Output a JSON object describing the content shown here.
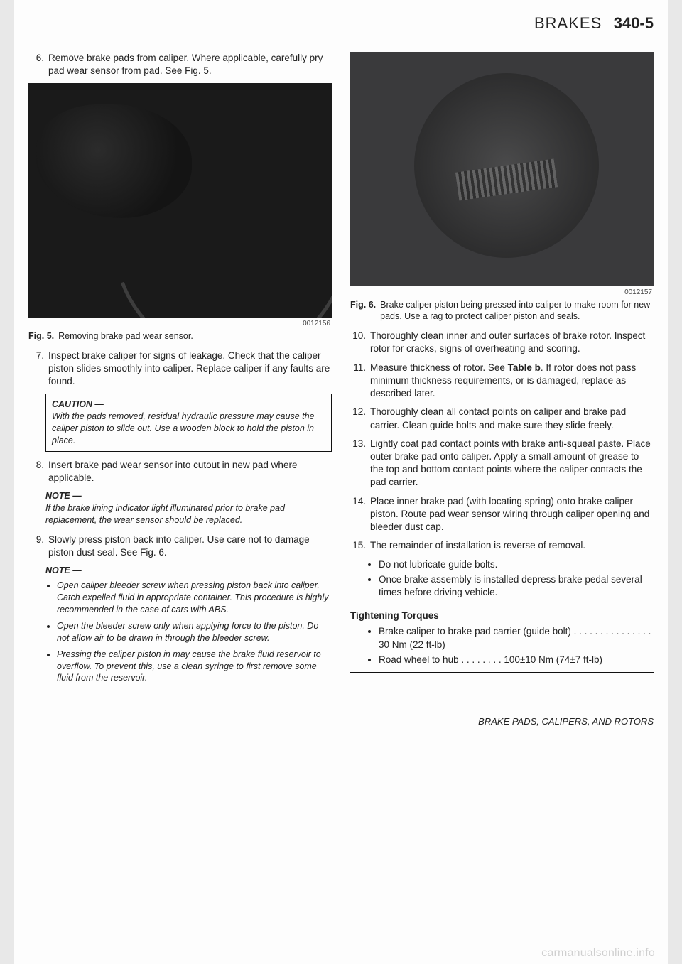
{
  "header": {
    "title": "BRAKES",
    "pagenum": "340-5"
  },
  "left": {
    "step6": {
      "num": "6.",
      "text": "Remove brake pads from caliper. Where applicable, carefully pry pad wear sensor from pad. See Fig. 5."
    },
    "fig5": {
      "imgnum": "0012156",
      "label": "Fig. 5.",
      "caption": "Removing brake pad wear sensor."
    },
    "step7": {
      "num": "7.",
      "text": "Inspect brake caliper for signs of leakage. Check that the caliper piston slides smoothly into caliper. Replace caliper if any faults are found."
    },
    "caution": {
      "label": "CAUTION —",
      "body": "With the pads removed, residual hydraulic pressure may cause the caliper piston to slide out. Use a wooden block to hold the piston in place."
    },
    "step8": {
      "num": "8.",
      "text": "Insert brake pad wear sensor into cutout in new pad where applicable."
    },
    "note1": {
      "label": "NOTE —",
      "body": "If the brake lining indicator light illuminated prior to brake pad replacement, the wear sensor should be replaced."
    },
    "step9": {
      "num": "9.",
      "text": "Slowly press piston back into caliper. Use care not to damage piston dust seal. See Fig. 6."
    },
    "note2": {
      "label": "NOTE —",
      "items": [
        "Open caliper bleeder screw when pressing piston back into caliper. Catch expelled fluid in appropriate container. This procedure is highly recommended in the case of cars with ABS.",
        "Open the bleeder screw only when applying force to the piston. Do not allow air to be drawn in through the bleeder screw.",
        "Pressing the caliper piston in may cause the brake fluid reservoir to overflow. To prevent this, use a clean syringe to first remove some fluid from the reservoir."
      ]
    }
  },
  "right": {
    "fig6": {
      "imgnum": "0012157",
      "label": "Fig. 6.",
      "caption": "Brake caliper piston being pressed into caliper to make room for new pads. Use a rag to protect caliper piston and seals."
    },
    "step10": {
      "num": "10.",
      "text": "Thoroughly clean inner and outer surfaces of brake rotor. Inspect rotor for cracks, signs of overheating and scoring."
    },
    "step11": {
      "num": "11.",
      "text_pre": "Measure thickness of rotor. See ",
      "bold": "Table b",
      "text_post": ". If rotor does not pass minimum thickness requirements, or is damaged, replace as described later."
    },
    "step12": {
      "num": "12.",
      "text": "Thoroughly clean all contact points on caliper and brake pad carrier. Clean guide bolts and make sure they slide freely."
    },
    "step13": {
      "num": "13.",
      "text": "Lightly coat pad contact points with brake anti-squeal paste. Place outer brake pad onto caliper. Apply a small amount of grease to the top and bottom contact points where the caliper contacts the pad carrier."
    },
    "step14": {
      "num": "14.",
      "text": "Place inner brake pad (with locating spring) onto brake caliper piston. Route pad wear sensor wiring through caliper opening and bleeder dust cap."
    },
    "step15": {
      "num": "15.",
      "text": "The remainder of installation is reverse of removal."
    },
    "step15_bullets": [
      "Do not lubricate guide bolts.",
      "Once brake assembly is installed depress brake pedal several times before driving vehicle."
    ],
    "torques": {
      "title": "Tightening Torques",
      "items": [
        {
          "label": "Brake caliper to brake pad carrier (guide bolt)",
          "dots": " . . . . . . . . . . . . . . . ",
          "value": "30 Nm (22 ft-lb)"
        },
        {
          "label": "Road wheel to hub",
          "dots": "  . . . . . . . . ",
          "value": "100±10 Nm (74±7 ft-lb)"
        }
      ]
    },
    "footer": "BRAKE PADS, CALIPERS, AND ROTORS"
  },
  "watermark": "carmanualsonline.info",
  "colors": {
    "page_bg": "#fdfdfd",
    "body_bg": "#e8e8e8",
    "text": "#222222",
    "rule": "#111111",
    "fig_dark": "#1a1a1a",
    "fig_light": "#3a3a3c",
    "watermark": "rgba(0,0,0,0.18)"
  },
  "typography": {
    "body_fontsize_pt": 10,
    "header_fontsize_pt": 16,
    "caption_fontsize_pt": 9,
    "font_family": "Helvetica"
  }
}
